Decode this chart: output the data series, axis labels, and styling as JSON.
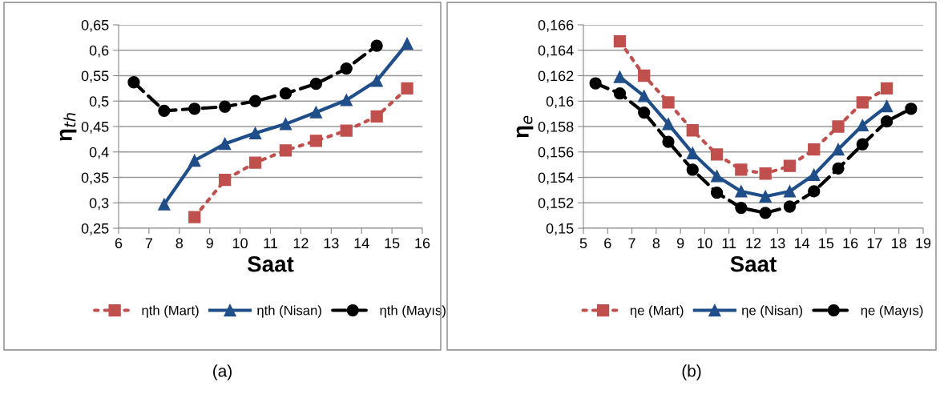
{
  "chart_data": [
    {
      "type": "line",
      "xlabel": "Saat",
      "ylabel": "η$_{th}$",
      "xlim": [
        6,
        16
      ],
      "xticks": [
        6,
        7,
        8,
        9,
        10,
        11,
        12,
        13,
        14,
        15,
        16
      ],
      "ylim": [
        0.25,
        0.65
      ],
      "yticks": [
        {
          "value": 0.25,
          "label": "0,25"
        },
        {
          "value": 0.3,
          "label": "0,3"
        },
        {
          "value": 0.35,
          "label": "0,35"
        },
        {
          "value": 0.4,
          "label": "0,4"
        },
        {
          "value": 0.45,
          "label": "0,45"
        },
        {
          "value": 0.5,
          "label": "0,5"
        },
        {
          "value": 0.55,
          "label": "0,55"
        },
        {
          "value": 0.6,
          "label": "0,6"
        },
        {
          "value": 0.65,
          "label": "0,65"
        }
      ],
      "grid": "y",
      "legend": "bottom",
      "annotations": [
        "(a)"
      ],
      "series": [
        {
          "name": "ηth (Mart)",
          "color": "#c0504d",
          "marker": "square",
          "line_style": "dotted",
          "x": [
            8.5,
            9.5,
            10.5,
            11.5,
            12.5,
            13.5,
            14.5,
            15.5
          ],
          "values": [
            0.272,
            0.345,
            0.379,
            0.403,
            0.422,
            0.442,
            0.47,
            0.525
          ]
        },
        {
          "name": "ηth (Nisan)",
          "color": "#1f4e89",
          "marker": "triangle",
          "line_style": "solid",
          "x": [
            7.5,
            8.5,
            9.5,
            10.5,
            11.5,
            12.5,
            13.5,
            14.5,
            15.5
          ],
          "values": [
            0.297,
            0.383,
            0.416,
            0.437,
            0.455,
            0.478,
            0.502,
            0.54,
            0.613
          ]
        },
        {
          "name": "ηth (Mayıs)",
          "color": "#000000",
          "marker": "circle",
          "line_style": "dashed",
          "x": [
            6.5,
            7.5,
            8.5,
            9.5,
            10.5,
            11.5,
            12.5,
            13.5,
            14.5
          ],
          "values": [
            0.537,
            0.481,
            0.485,
            0.489,
            0.5,
            0.515,
            0.534,
            0.564,
            0.609
          ]
        }
      ]
    },
    {
      "type": "line",
      "xlabel": "Saat",
      "ylabel": "η$_{e}$",
      "xlim": [
        5,
        19
      ],
      "xticks": [
        5,
        6,
        7,
        8,
        9,
        10,
        11,
        12,
        13,
        14,
        15,
        16,
        17,
        18,
        19
      ],
      "ylim": [
        0.15,
        0.166
      ],
      "yticks": [
        {
          "value": 0.15,
          "label": "0,15"
        },
        {
          "value": 0.152,
          "label": "0,152"
        },
        {
          "value": 0.154,
          "label": "0,154"
        },
        {
          "value": 0.156,
          "label": "0,156"
        },
        {
          "value": 0.158,
          "label": "0,158"
        },
        {
          "value": 0.16,
          "label": "0,16"
        },
        {
          "value": 0.162,
          "label": "0,162"
        },
        {
          "value": 0.164,
          "label": "0,164"
        },
        {
          "value": 0.166,
          "label": "0,166"
        }
      ],
      "grid": "y",
      "legend": "bottom",
      "annotations": [
        "(b)"
      ],
      "series": [
        {
          "name": "ηe (Mart)",
          "color": "#c0504d",
          "marker": "square",
          "line_style": "dotted",
          "x": [
            6.5,
            7.5,
            8.5,
            9.5,
            10.5,
            11.5,
            12.5,
            13.5,
            14.5,
            15.5,
            16.5,
            17.5
          ],
          "values": [
            0.1647,
            0.162,
            0.1599,
            0.1577,
            0.1558,
            0.1546,
            0.1543,
            0.1549,
            0.1562,
            0.158,
            0.1599,
            0.161
          ]
        },
        {
          "name": "ηe (Nisan)",
          "color": "#1f4e89",
          "marker": "triangle",
          "line_style": "solid",
          "x": [
            6.5,
            7.5,
            8.5,
            9.5,
            10.5,
            11.5,
            12.5,
            13.5,
            14.5,
            15.5,
            16.5,
            17.5
          ],
          "values": [
            0.1619,
            0.1604,
            0.1582,
            0.1559,
            0.1541,
            0.1529,
            0.1525,
            0.1529,
            0.1542,
            0.1562,
            0.1581,
            0.1596
          ]
        },
        {
          "name": "ηe (Mayıs)",
          "color": "#000000",
          "marker": "circle",
          "line_style": "dashed",
          "x": [
            5.5,
            6.5,
            7.5,
            8.5,
            9.5,
            10.5,
            11.5,
            12.5,
            13.5,
            14.5,
            15.5,
            16.5,
            17.5,
            18.5
          ],
          "values": [
            0.1614,
            0.1606,
            0.1591,
            0.1568,
            0.1546,
            0.1528,
            0.1516,
            0.1512,
            0.1517,
            0.1529,
            0.1547,
            0.1566,
            0.1584,
            0.1594
          ]
        }
      ]
    }
  ]
}
